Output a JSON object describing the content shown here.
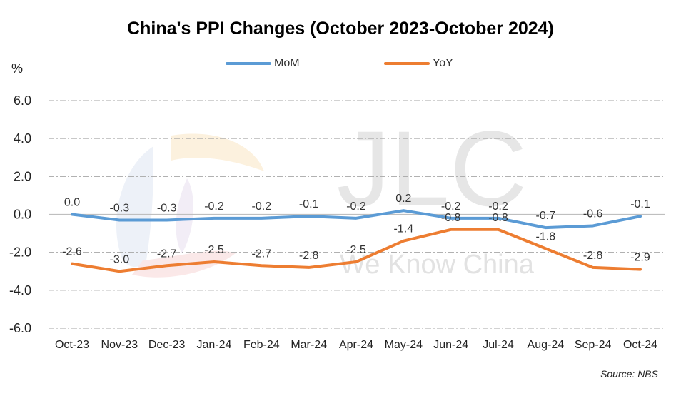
{
  "chart_data": {
    "type": "line",
    "title": "China's PPI Changes (October 2023-October 2024)",
    "ylabel": "%",
    "ylim": [
      -6,
      6
    ],
    "yticks": [
      "6.0",
      "4.0",
      "2.0",
      "0.0",
      "-2.0",
      "-4.0",
      "-6.0"
    ],
    "grid": true,
    "legend_position": "top",
    "categories": [
      "Oct-23",
      "Nov-23",
      "Dec-23",
      "Jan-24",
      "Feb-24",
      "Mar-24",
      "Apr-24",
      "May-24",
      "Jun-24",
      "Jul-24",
      "Aug-24",
      "Sep-24",
      "Oct-24"
    ],
    "series": [
      {
        "name": "MoM",
        "color": "#5b9bd5",
        "values": [
          0.0,
          -0.3,
          -0.3,
          -0.2,
          -0.2,
          -0.1,
          -0.2,
          0.2,
          -0.2,
          -0.2,
          -0.7,
          -0.6,
          -0.1
        ],
        "labels": [
          "0.0",
          "-0.3",
          "-0.3",
          "-0.2",
          "-0.2",
          "-0.1",
          "-0.2",
          "0.2",
          "-0.2",
          "-0.2",
          "-0.7",
          "-0.6",
          "-0.1"
        ]
      },
      {
        "name": "YoY",
        "color": "#ed7d31",
        "values": [
          -2.6,
          -3.0,
          -2.7,
          -2.5,
          -2.7,
          -2.8,
          -2.5,
          -1.4,
          -0.8,
          -0.8,
          -1.8,
          -2.8,
          -2.9
        ],
        "labels": [
          "-2.6",
          "-3.0",
          "-2.7",
          "-2.5",
          "-2.7",
          "-2.8",
          "-2.5",
          "-1.4",
          "-0.8",
          "-0.8",
          "-1.8",
          "-2.8",
          "-2.9"
        ]
      }
    ],
    "source": "Source: NBS"
  },
  "watermark": {
    "brand": "JLC",
    "tagline": "We Know China"
  }
}
